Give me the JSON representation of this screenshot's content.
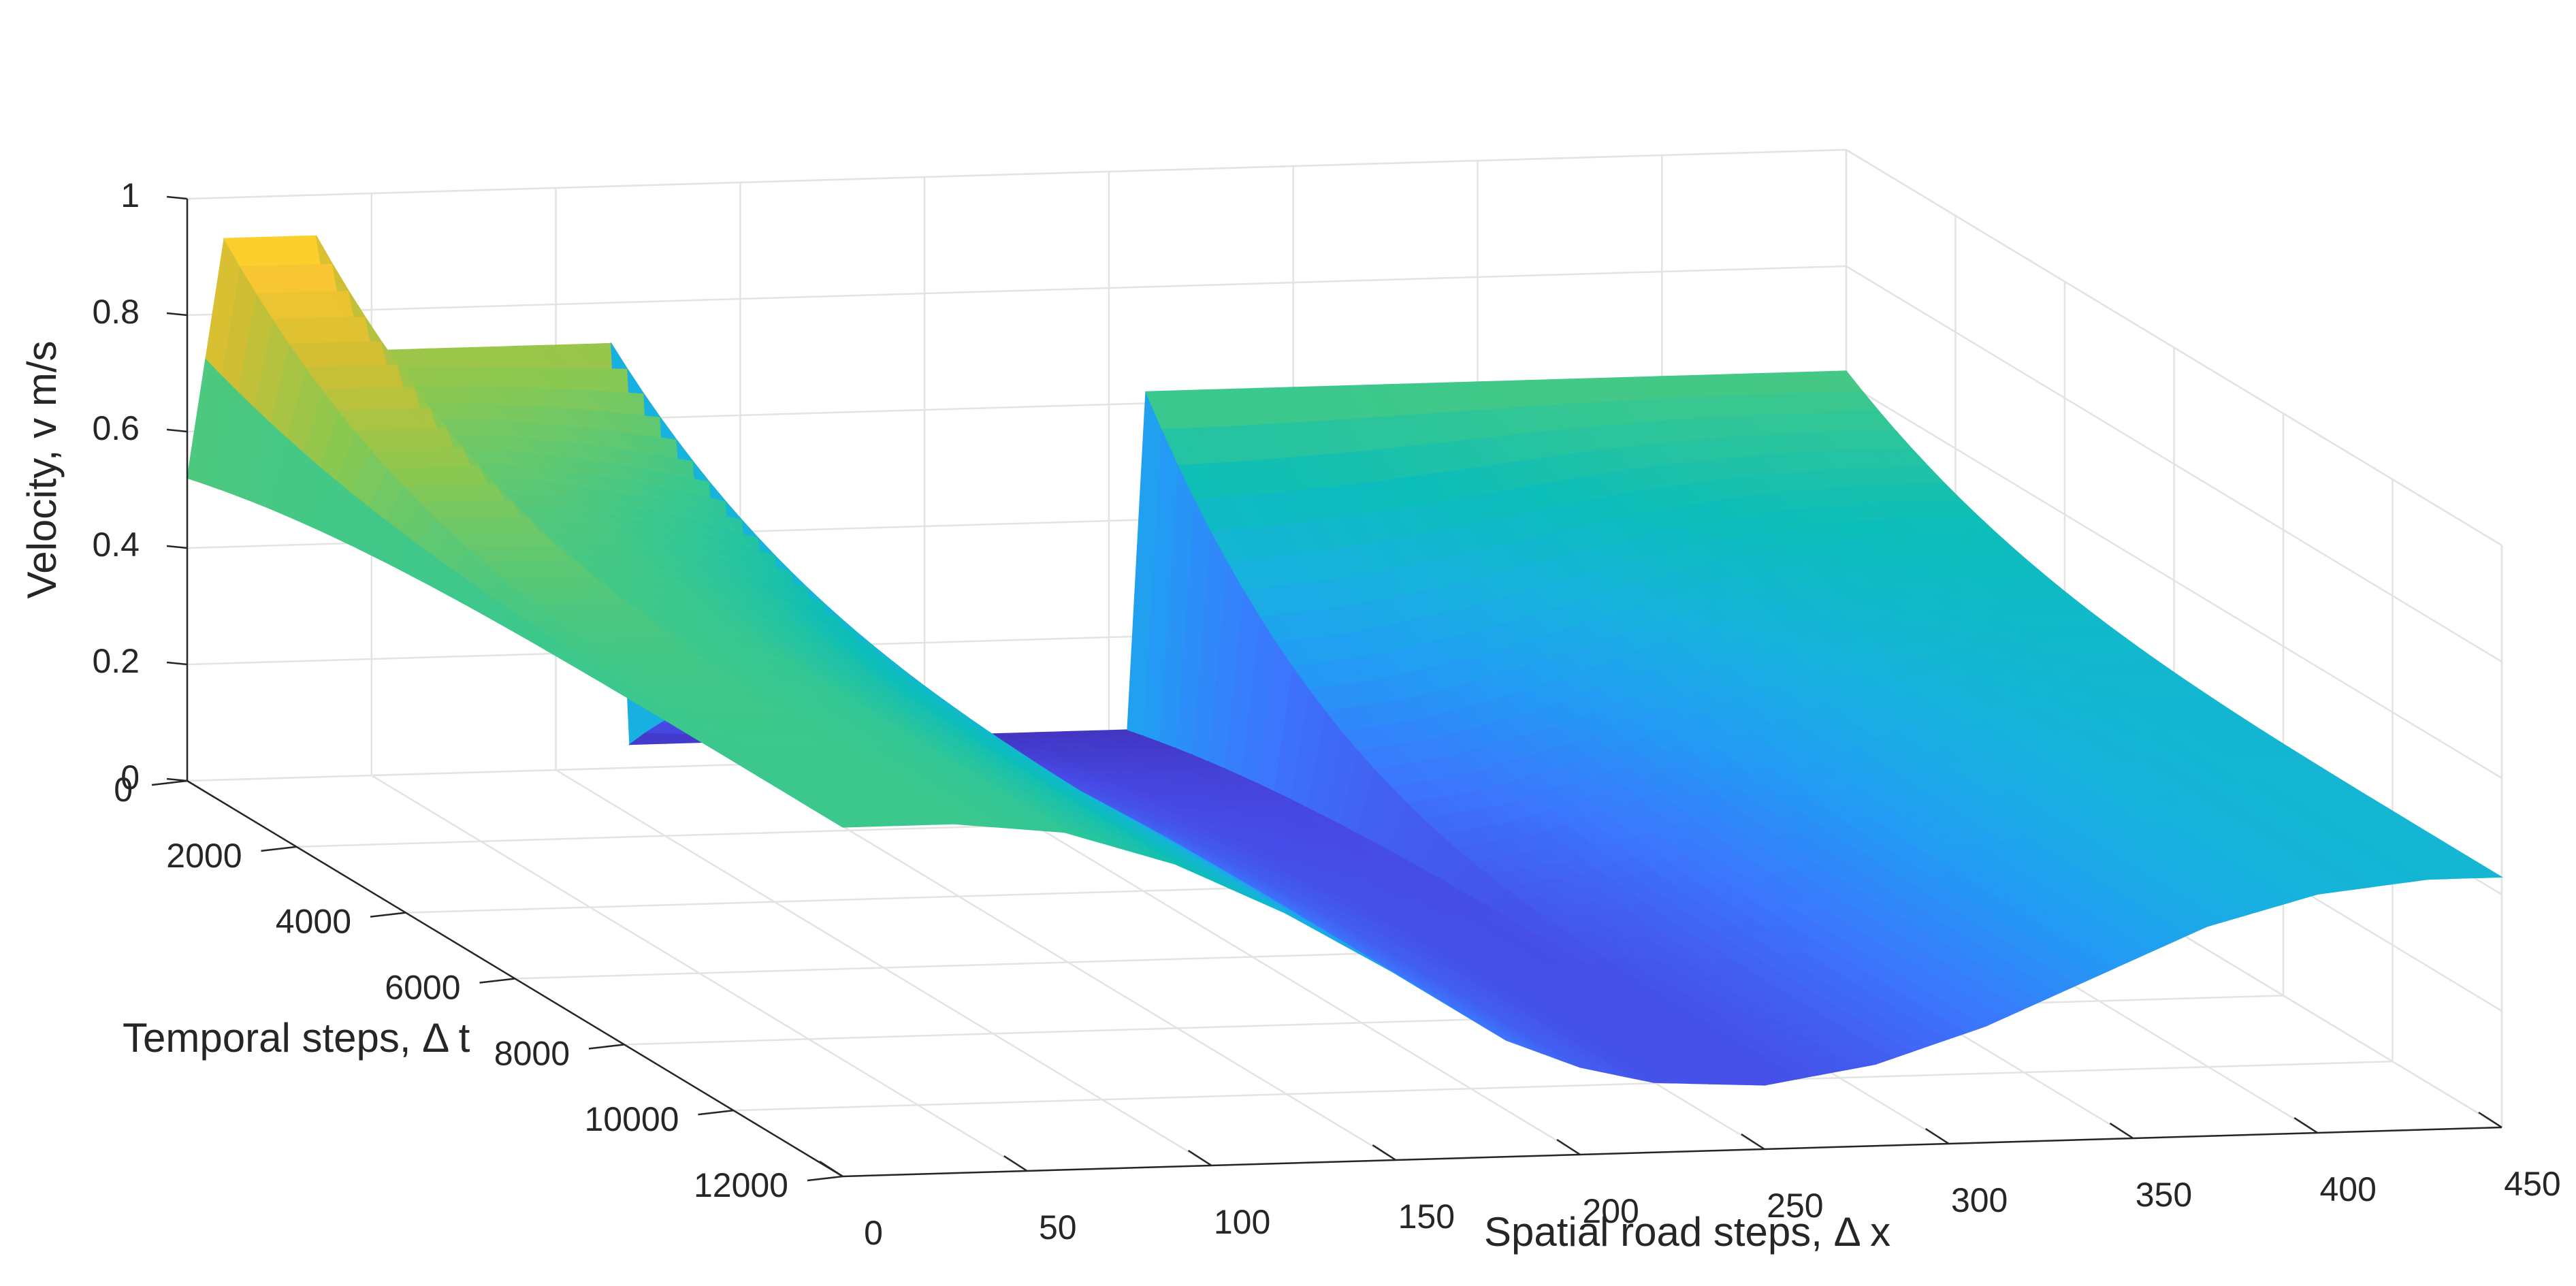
{
  "chart_data": {
    "type": "surface",
    "title": "",
    "xlabel": "Spatial road steps, Δ x",
    "ylabel": "Temporal steps, Δ t",
    "zlabel": "Velocity, v m/s",
    "xlim": [
      0,
      450
    ],
    "ylim": [
      0,
      12000
    ],
    "zlim": [
      0,
      1
    ],
    "x_ticks": [
      "0",
      "50",
      "100",
      "150",
      "200",
      "250",
      "300",
      "350",
      "400",
      "450"
    ],
    "y_ticks": [
      "0",
      "2000",
      "4000",
      "6000",
      "8000",
      "10000",
      "12000"
    ],
    "z_ticks": [
      "0",
      "0.2",
      "0.4",
      "0.6",
      "0.8",
      "1"
    ],
    "colormap": "parula",
    "grid": true,
    "surface_extent": {
      "x": [
        0,
        450
      ],
      "t": [
        0,
        12000
      ]
    },
    "velocity_profile_t0": {
      "x": [
        0,
        10,
        20,
        35,
        36,
        60,
        90,
        119,
        120,
        150,
        160,
        180,
        200,
        230,
        259,
        260,
        280,
        300,
        320,
        340,
        360,
        380,
        400,
        420,
        450
      ],
      "v": [
        0.52,
        0.93,
        0.93,
        0.93,
        0.73,
        0.73,
        0.73,
        0.73,
        0.04,
        0.04,
        0.04,
        0.04,
        0.04,
        0.04,
        0.04,
        0.62,
        0.62,
        0.62,
        0.62,
        0.62,
        0.62,
        0.62,
        0.62,
        0.62,
        0.62
      ]
    },
    "velocity_profile_t12000": {
      "x": [
        0,
        30,
        60,
        90,
        120,
        150,
        180,
        200,
        220,
        250,
        280,
        310,
        340,
        370,
        400,
        430,
        450
      ],
      "v": [
        0.6,
        0.6,
        0.58,
        0.52,
        0.43,
        0.32,
        0.2,
        0.15,
        0.12,
        0.11,
        0.14,
        0.2,
        0.28,
        0.36,
        0.41,
        0.43,
        0.43
      ]
    }
  }
}
